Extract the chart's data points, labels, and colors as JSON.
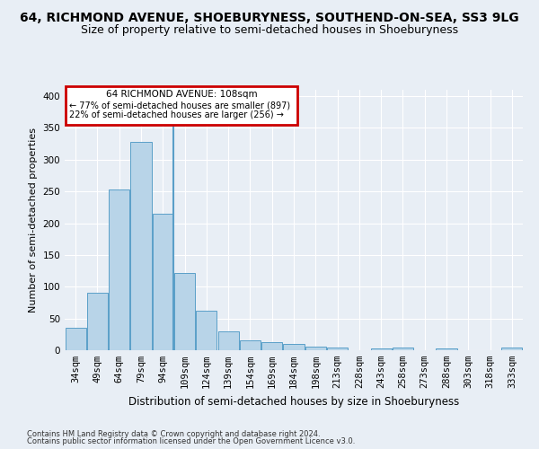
{
  "title": "64, RICHMOND AVENUE, SHOEBURYNESS, SOUTHEND-ON-SEA, SS3 9LG",
  "subtitle": "Size of property relative to semi-detached houses in Shoeburyness",
  "xlabel": "Distribution of semi-detached houses by size in Shoeburyness",
  "ylabel": "Number of semi-detached properties",
  "footer1": "Contains HM Land Registry data © Crown copyright and database right 2024.",
  "footer2": "Contains public sector information licensed under the Open Government Licence v3.0.",
  "categories": [
    "34sqm",
    "49sqm",
    "64sqm",
    "79sqm",
    "94sqm",
    "109sqm",
    "124sqm",
    "139sqm",
    "154sqm",
    "169sqm",
    "184sqm",
    "198sqm",
    "213sqm",
    "228sqm",
    "243sqm",
    "258sqm",
    "273sqm",
    "288sqm",
    "303sqm",
    "318sqm",
    "333sqm"
  ],
  "values": [
    35,
    90,
    253,
    328,
    215,
    121,
    62,
    29,
    15,
    13,
    10,
    5,
    4,
    0,
    3,
    4,
    0,
    3,
    0,
    0,
    4
  ],
  "bar_color": "#b8d4e8",
  "bar_edge_color": "#5a9fc8",
  "vline_color": "#5a9fc8",
  "annotation_line1": "64 RICHMOND AVENUE: 108sqm",
  "annotation_line2": "← 77% of semi-detached houses are smaller (897)",
  "annotation_line3": "22% of semi-detached houses are larger (256) →",
  "annotation_box_edge": "#cc0000",
  "ylim": [
    0,
    410
  ],
  "yticks": [
    0,
    50,
    100,
    150,
    200,
    250,
    300,
    350,
    400
  ],
  "background_color": "#e8eef5",
  "grid_color": "#ffffff",
  "title_fontsize": 10,
  "subtitle_fontsize": 9,
  "ylabel_fontsize": 8,
  "xlabel_fontsize": 8.5,
  "tick_fontsize": 7.5,
  "footer_fontsize": 6
}
